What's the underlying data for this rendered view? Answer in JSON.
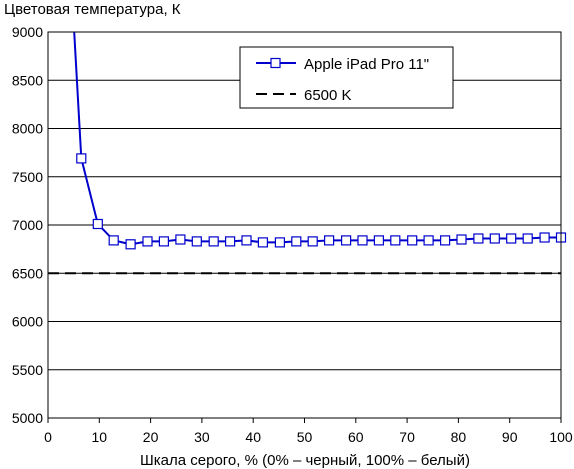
{
  "chart_data": {
    "type": "line",
    "title": "",
    "ylabel": "Цветовая температура, К",
    "xlabel": "Шкала серого, % (0% – черный, 100% – белый)",
    "xlim": [
      0,
      100
    ],
    "ylim": [
      5000,
      9000
    ],
    "xticks": [
      "0",
      "10",
      "20",
      "30",
      "40",
      "50",
      "60",
      "70",
      "80",
      "90",
      "100"
    ],
    "yticks": [
      "5000",
      "5500",
      "6000",
      "6500",
      "7000",
      "7500",
      "8000",
      "8500",
      "9000"
    ],
    "grid": "horizontal",
    "legend_position": "top-right",
    "series": [
      {
        "name": "Apple iPad Pro 11\"",
        "color": "#0000cc",
        "marker": "open-square",
        "x": [
          5.1,
          6.5,
          9.7,
          12.8,
          16.1,
          19.4,
          22.6,
          25.8,
          29.0,
          32.3,
          35.5,
          38.7,
          41.9,
          45.2,
          48.4,
          51.6,
          54.8,
          58.1,
          61.3,
          64.5,
          67.7,
          71.0,
          74.2,
          77.4,
          80.6,
          83.9,
          87.1,
          90.3,
          93.5,
          96.8,
          100.0
        ],
        "y": [
          9000,
          7690,
          7010,
          6840,
          6800,
          6830,
          6830,
          6850,
          6830,
          6830,
          6830,
          6840,
          6820,
          6820,
          6830,
          6830,
          6840,
          6840,
          6840,
          6840,
          6840,
          6840,
          6840,
          6840,
          6850,
          6860,
          6860,
          6860,
          6860,
          6870,
          6870
        ]
      },
      {
        "name": "6500 K",
        "color": "#000000",
        "style": "dashed",
        "x": [
          0,
          100
        ],
        "y": [
          6500,
          6500
        ]
      }
    ]
  }
}
